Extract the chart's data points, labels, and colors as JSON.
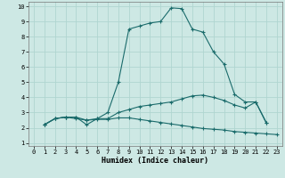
{
  "xlabel": "Humidex (Indice chaleur)",
  "bg_color": "#cde8e4",
  "grid_color": "#b0d5d0",
  "line_color": "#1a6b6b",
  "xlim": [
    -0.5,
    23.5
  ],
  "ylim": [
    0.8,
    10.3
  ],
  "xticks": [
    0,
    1,
    2,
    3,
    4,
    5,
    6,
    7,
    8,
    9,
    10,
    11,
    12,
    13,
    14,
    15,
    16,
    17,
    18,
    19,
    20,
    21,
    22,
    23
  ],
  "yticks": [
    1,
    2,
    3,
    4,
    5,
    6,
    7,
    8,
    9,
    10
  ],
  "line1_x": [
    1,
    2,
    3,
    4,
    5,
    6,
    7,
    8,
    9,
    10,
    11,
    12,
    13,
    14,
    15,
    16,
    17,
    18,
    19,
    20,
    21,
    22
  ],
  "line1_y": [
    2.2,
    2.6,
    2.7,
    2.7,
    2.2,
    2.6,
    3.0,
    5.0,
    8.5,
    8.7,
    8.9,
    9.0,
    9.9,
    9.85,
    8.5,
    8.3,
    7.0,
    6.2,
    4.2,
    3.7,
    3.7,
    2.3
  ],
  "line2_x": [
    1,
    2,
    3,
    4,
    5,
    6,
    7,
    8,
    9,
    10,
    11,
    12,
    13,
    14,
    15,
    16,
    17,
    18,
    19,
    20,
    21,
    22
  ],
  "line2_y": [
    2.2,
    2.6,
    2.7,
    2.6,
    2.5,
    2.6,
    2.6,
    3.0,
    3.2,
    3.4,
    3.5,
    3.6,
    3.7,
    3.9,
    4.1,
    4.15,
    4.0,
    3.8,
    3.5,
    3.3,
    3.7,
    2.35
  ],
  "line3_x": [
    1,
    2,
    3,
    4,
    5,
    6,
    7,
    8,
    9,
    10,
    11,
    12,
    13,
    14,
    15,
    16,
    17,
    18,
    19,
    20,
    21,
    22,
    23
  ],
  "line3_y": [
    2.2,
    2.6,
    2.7,
    2.7,
    2.5,
    2.55,
    2.55,
    2.65,
    2.65,
    2.55,
    2.45,
    2.35,
    2.25,
    2.15,
    2.05,
    1.95,
    1.9,
    1.85,
    1.75,
    1.7,
    1.65,
    1.6,
    1.55
  ]
}
